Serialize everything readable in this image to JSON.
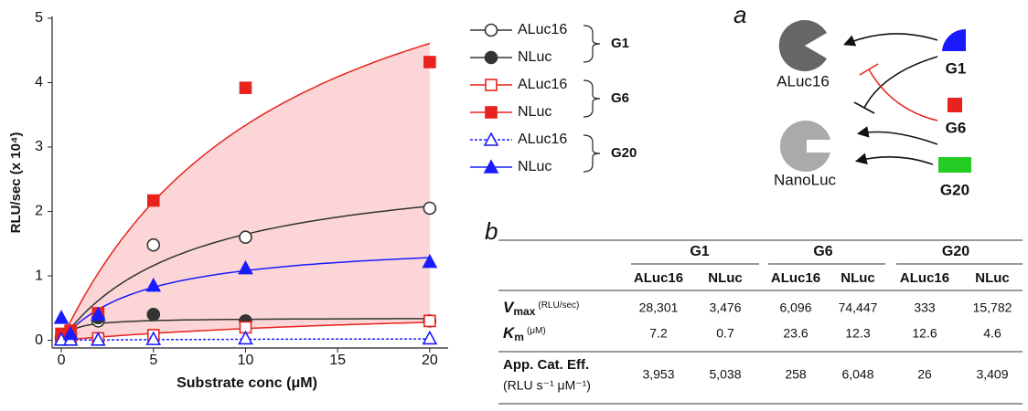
{
  "chart_data": {
    "type": "scatter",
    "ylabel": "RLU/sec (x 10⁴)",
    "xlabel": "Substrate conc (μM)",
    "x": [
      0,
      0.5,
      2,
      5,
      10,
      20
    ],
    "xlim": [
      -0.5,
      21
    ],
    "ylim": [
      -0.12,
      5
    ],
    "xticks": [
      0,
      5,
      10,
      15,
      20
    ],
    "yticks": [
      0,
      1,
      2,
      3,
      4,
      5
    ],
    "legend_groups": [
      {
        "name": "G1",
        "band": "#d4d4d4"
      },
      {
        "name": "G6",
        "band": "#fcd6d6"
      },
      {
        "name": "G20"
      }
    ],
    "series": [
      {
        "name": "ALuc16",
        "color": "#333333",
        "marker": "circle",
        "filled": false,
        "values": [
          0.05,
          0.1,
          0.3,
          1.48,
          1.6,
          2.05
        ]
      },
      {
        "name": "NLuc",
        "color": "#333333",
        "marker": "circle",
        "filled": true,
        "values": [
          0.02,
          0.05,
          0.35,
          0.4,
          0.3,
          0.3
        ]
      },
      {
        "name": "ALuc16",
        "color": "#e8221c",
        "marker": "square",
        "filled": false,
        "values": [
          0.02,
          0.03,
          0.03,
          0.08,
          0.2,
          0.3
        ]
      },
      {
        "name": "NLuc",
        "color": "#e8221c",
        "marker": "square",
        "filled": true,
        "values": [
          0.1,
          0.15,
          0.42,
          2.17,
          3.92,
          4.32
        ]
      },
      {
        "name": "ALuc16",
        "color": "#1a1aff",
        "marker": "triangle",
        "filled": false,
        "dashed": true,
        "values": [
          0.01,
          0.01,
          0.01,
          0.02,
          0.03,
          0.03
        ]
      },
      {
        "name": "NLuc",
        "color": "#1a1aff",
        "marker": "triangle",
        "filled": true,
        "values": [
          0.35,
          0.1,
          0.4,
          0.85,
          1.12,
          1.22
        ]
      }
    ]
  },
  "diagram": {
    "label": "a",
    "nodes": [
      {
        "label": "ALuc16"
      },
      {
        "label": "NanoLuc"
      },
      {
        "label": "G1"
      },
      {
        "label": "G6"
      },
      {
        "label": "G20"
      }
    ]
  },
  "table": {
    "label": "b",
    "groups": [
      "G1",
      "G6",
      "G20"
    ],
    "columns": [
      "ALuc16",
      "NLuc",
      "ALuc16",
      "NLuc",
      "ALuc16",
      "NLuc"
    ],
    "rows": [
      {
        "symbol": "V",
        "sub": "max",
        "unit": "(RLU/sec)",
        "cells": [
          "28,301",
          "3,476",
          "6,096",
          "74,447",
          "333",
          "15,782"
        ]
      },
      {
        "symbol": "K",
        "sub": "m",
        "unit": "(μM)",
        "cells": [
          "7.2",
          "0.7",
          "23.6",
          "12.3",
          "12.6",
          "4.6"
        ]
      },
      {
        "label": "App. Cat. Eff.",
        "unit": "(RLU s⁻¹ μM⁻¹)",
        "cells": [
          "3,953",
          "5,038",
          "258",
          "6,048",
          "26",
          "3,409"
        ]
      }
    ]
  }
}
